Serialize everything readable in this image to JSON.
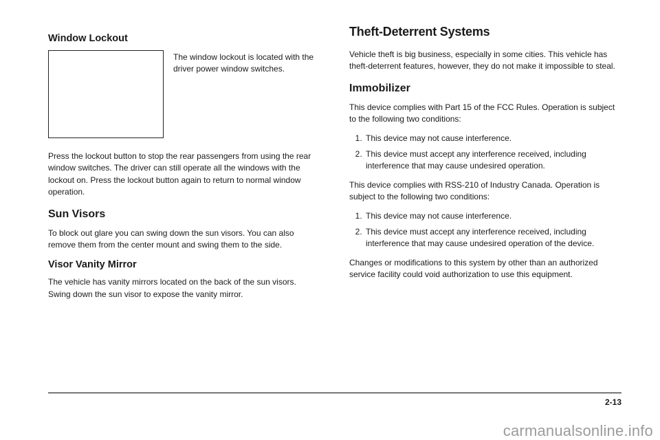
{
  "left": {
    "h_wlock": "Window Lockout",
    "lockout_caption": "The window lockout is located with the driver power window switches.",
    "lockout_body": "Press the lockout button to stop the rear passengers from using the rear window switches. The driver can still operate all the windows with the lockout on. Press the lockout button again to return to normal window operation.",
    "h_sun": "Sun Visors",
    "sun_body": "To block out glare you can swing down the sun visors. You can also remove them from the center mount and swing them to the side.",
    "h_vanity": "Visor Vanity Mirror",
    "vanity_body": "The vehicle has vanity mirrors located on the back of the sun visors. Swing down the sun visor to expose the vanity mirror."
  },
  "right": {
    "h_theft": "Theft-Deterrent Systems",
    "theft_body": "Vehicle theft is big business, especially in some cities. This vehicle has theft-deterrent features, however, they do not make it impossible to steal.",
    "h_immob": "Immobilizer",
    "immob_p1": "This device complies with Part 15 of the FCC Rules. Operation is subject to the following two conditions:",
    "fcc1": "This device may not cause interference.",
    "fcc2": "This device must accept any interference received, including interference that may cause undesired operation.",
    "immob_p2": "This device complies with RSS-210 of Industry Canada. Operation is subject to the following two conditions:",
    "ic1": "This device may not cause interference.",
    "ic2": "This device must accept any interference received, including interference that may cause undesired operation of the device.",
    "immob_p3": "Changes or modifications to this system by other than an authorized service facility could void authorization to use this equipment."
  },
  "pagenum": "2-13",
  "watermark": "carmanualsonline.info"
}
